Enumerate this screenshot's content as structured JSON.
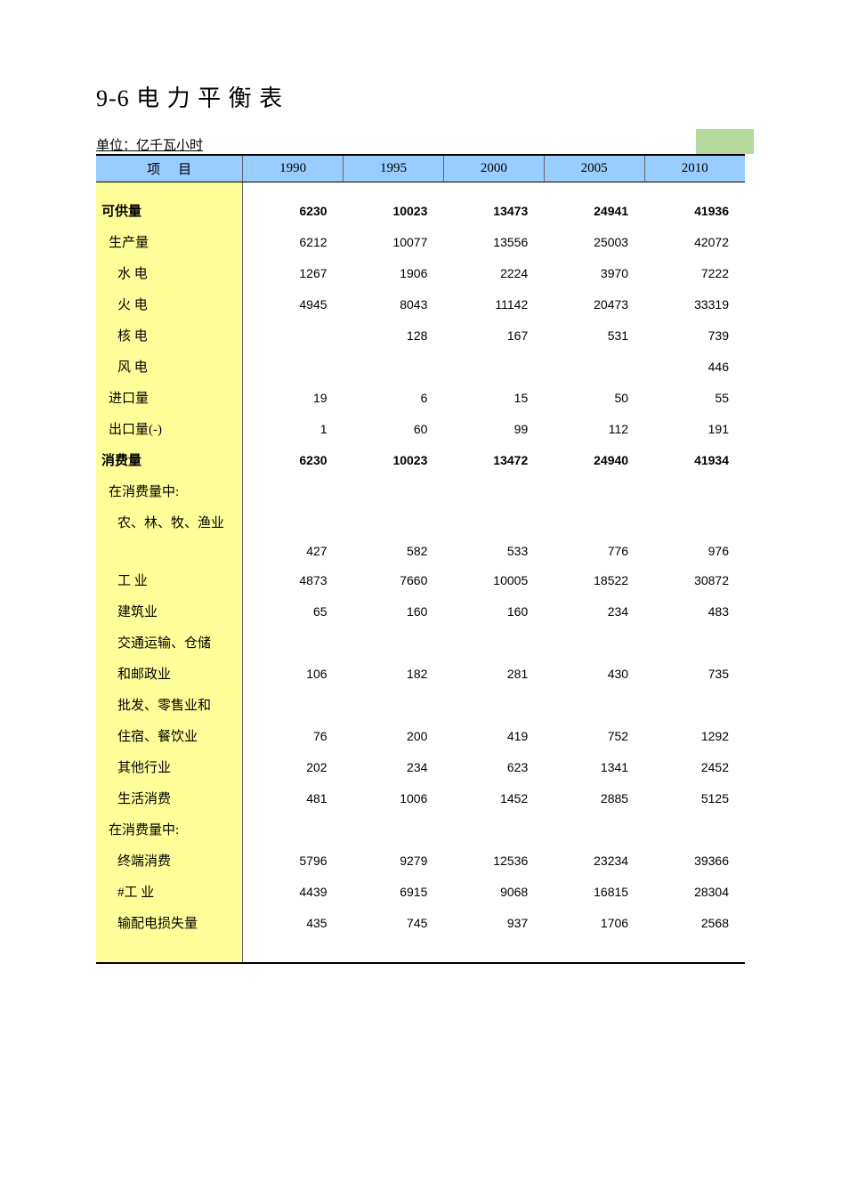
{
  "title": "9-6  电 力 平 衡 表",
  "unit": "单位：亿千瓦小时",
  "colors": {
    "header_bg": "#99ccff",
    "label_bg": "#ffff99",
    "green_box": "#b5d89c",
    "border": "#000000",
    "col_divider": "#666666",
    "page_bg": "#ffffff"
  },
  "typography": {
    "title_fontsize": 26,
    "body_fontsize": 15,
    "data_fontsize": 14,
    "label_font": "SimSun",
    "data_font": "Arial",
    "header_year_font": "Times New Roman"
  },
  "columns": {
    "item": "项目",
    "years": [
      "1990",
      "1995",
      "2000",
      "2005",
      "2010"
    ]
  },
  "column_widths": {
    "label": 165,
    "data": 113
  },
  "rows": [
    {
      "label": "可供量",
      "indent": 0,
      "bold": true,
      "values": [
        "6230",
        "10023",
        "13473",
        "24941",
        "41936"
      ]
    },
    {
      "label": "生产量",
      "indent": 1,
      "bold": false,
      "values": [
        "6212",
        "10077",
        "13556",
        "25003",
        "42072"
      ]
    },
    {
      "label": "水  电",
      "indent": 2,
      "bold": false,
      "values": [
        "1267",
        "1906",
        "2224",
        "3970",
        "7222"
      ]
    },
    {
      "label": "火  电",
      "indent": 2,
      "bold": false,
      "values": [
        "4945",
        "8043",
        "11142",
        "20473",
        "33319"
      ]
    },
    {
      "label": "核  电",
      "indent": 2,
      "bold": false,
      "values": [
        "",
        "128",
        "167",
        "531",
        "739"
      ]
    },
    {
      "label": "风  电",
      "indent": 2,
      "bold": false,
      "values": [
        "",
        "",
        "",
        "",
        "446"
      ]
    },
    {
      "label": "进口量",
      "indent": 1,
      "bold": false,
      "values": [
        "19",
        "6",
        "15",
        "50",
        "55"
      ]
    },
    {
      "label": "出口量(-)",
      "indent": 1,
      "bold": false,
      "values": [
        "1",
        "60",
        "99",
        "112",
        "191"
      ]
    },
    {
      "label": "消费量",
      "indent": 0,
      "bold": true,
      "values": [
        "6230",
        "10023",
        "13472",
        "24940",
        "41934"
      ]
    },
    {
      "label": "在消费量中:",
      "indent": 1,
      "bold": false,
      "values": [
        "",
        "",
        "",
        "",
        ""
      ]
    },
    {
      "label": "农、林、牧、渔业",
      "indent": 2,
      "bold": false,
      "values": [
        "",
        "",
        "",
        "",
        ""
      ]
    },
    {
      "label": "",
      "indent": 2,
      "bold": false,
      "values": [
        "427",
        "582",
        "533",
        "776",
        "976"
      ]
    },
    {
      "label": "工  业",
      "indent": 2,
      "bold": false,
      "values": [
        "4873",
        "7660",
        "10005",
        "18522",
        "30872"
      ]
    },
    {
      "label": "建筑业",
      "indent": 2,
      "bold": false,
      "values": [
        "65",
        "160",
        "160",
        "234",
        "483"
      ]
    },
    {
      "label": "交通运输、仓储",
      "indent": 2,
      "bold": false,
      "values": [
        "",
        "",
        "",
        "",
        ""
      ]
    },
    {
      "label": "和邮政业",
      "indent": 2,
      "bold": false,
      "values": [
        "106",
        "182",
        "281",
        "430",
        "735"
      ]
    },
    {
      "label": "批发、零售业和",
      "indent": 2,
      "bold": false,
      "values": [
        "",
        "",
        "",
        "",
        ""
      ]
    },
    {
      "label": "住宿、餐饮业",
      "indent": 2,
      "bold": false,
      "values": [
        "76",
        "200",
        "419",
        "752",
        "1292"
      ]
    },
    {
      "label": "其他行业",
      "indent": 2,
      "bold": false,
      "values": [
        "202",
        "234",
        "623",
        "1341",
        "2452"
      ]
    },
    {
      "label": "生活消费",
      "indent": 2,
      "bold": false,
      "values": [
        "481",
        "1006",
        "1452",
        "2885",
        "5125"
      ]
    },
    {
      "label": "在消费量中:",
      "indent": 1,
      "bold": false,
      "values": [
        "",
        "",
        "",
        "",
        ""
      ]
    },
    {
      "label": "终端消费",
      "indent": 2,
      "bold": false,
      "values": [
        "5796",
        "9279",
        "12536",
        "23234",
        "39366"
      ]
    },
    {
      "label": "#工  业",
      "indent": 2,
      "bold": false,
      "values": [
        "4439",
        "6915",
        "9068",
        "16815",
        "28304"
      ]
    },
    {
      "label": "输配电损失量",
      "indent": 2,
      "bold": false,
      "values": [
        "435",
        "745",
        "937",
        "1706",
        "2568"
      ]
    }
  ]
}
